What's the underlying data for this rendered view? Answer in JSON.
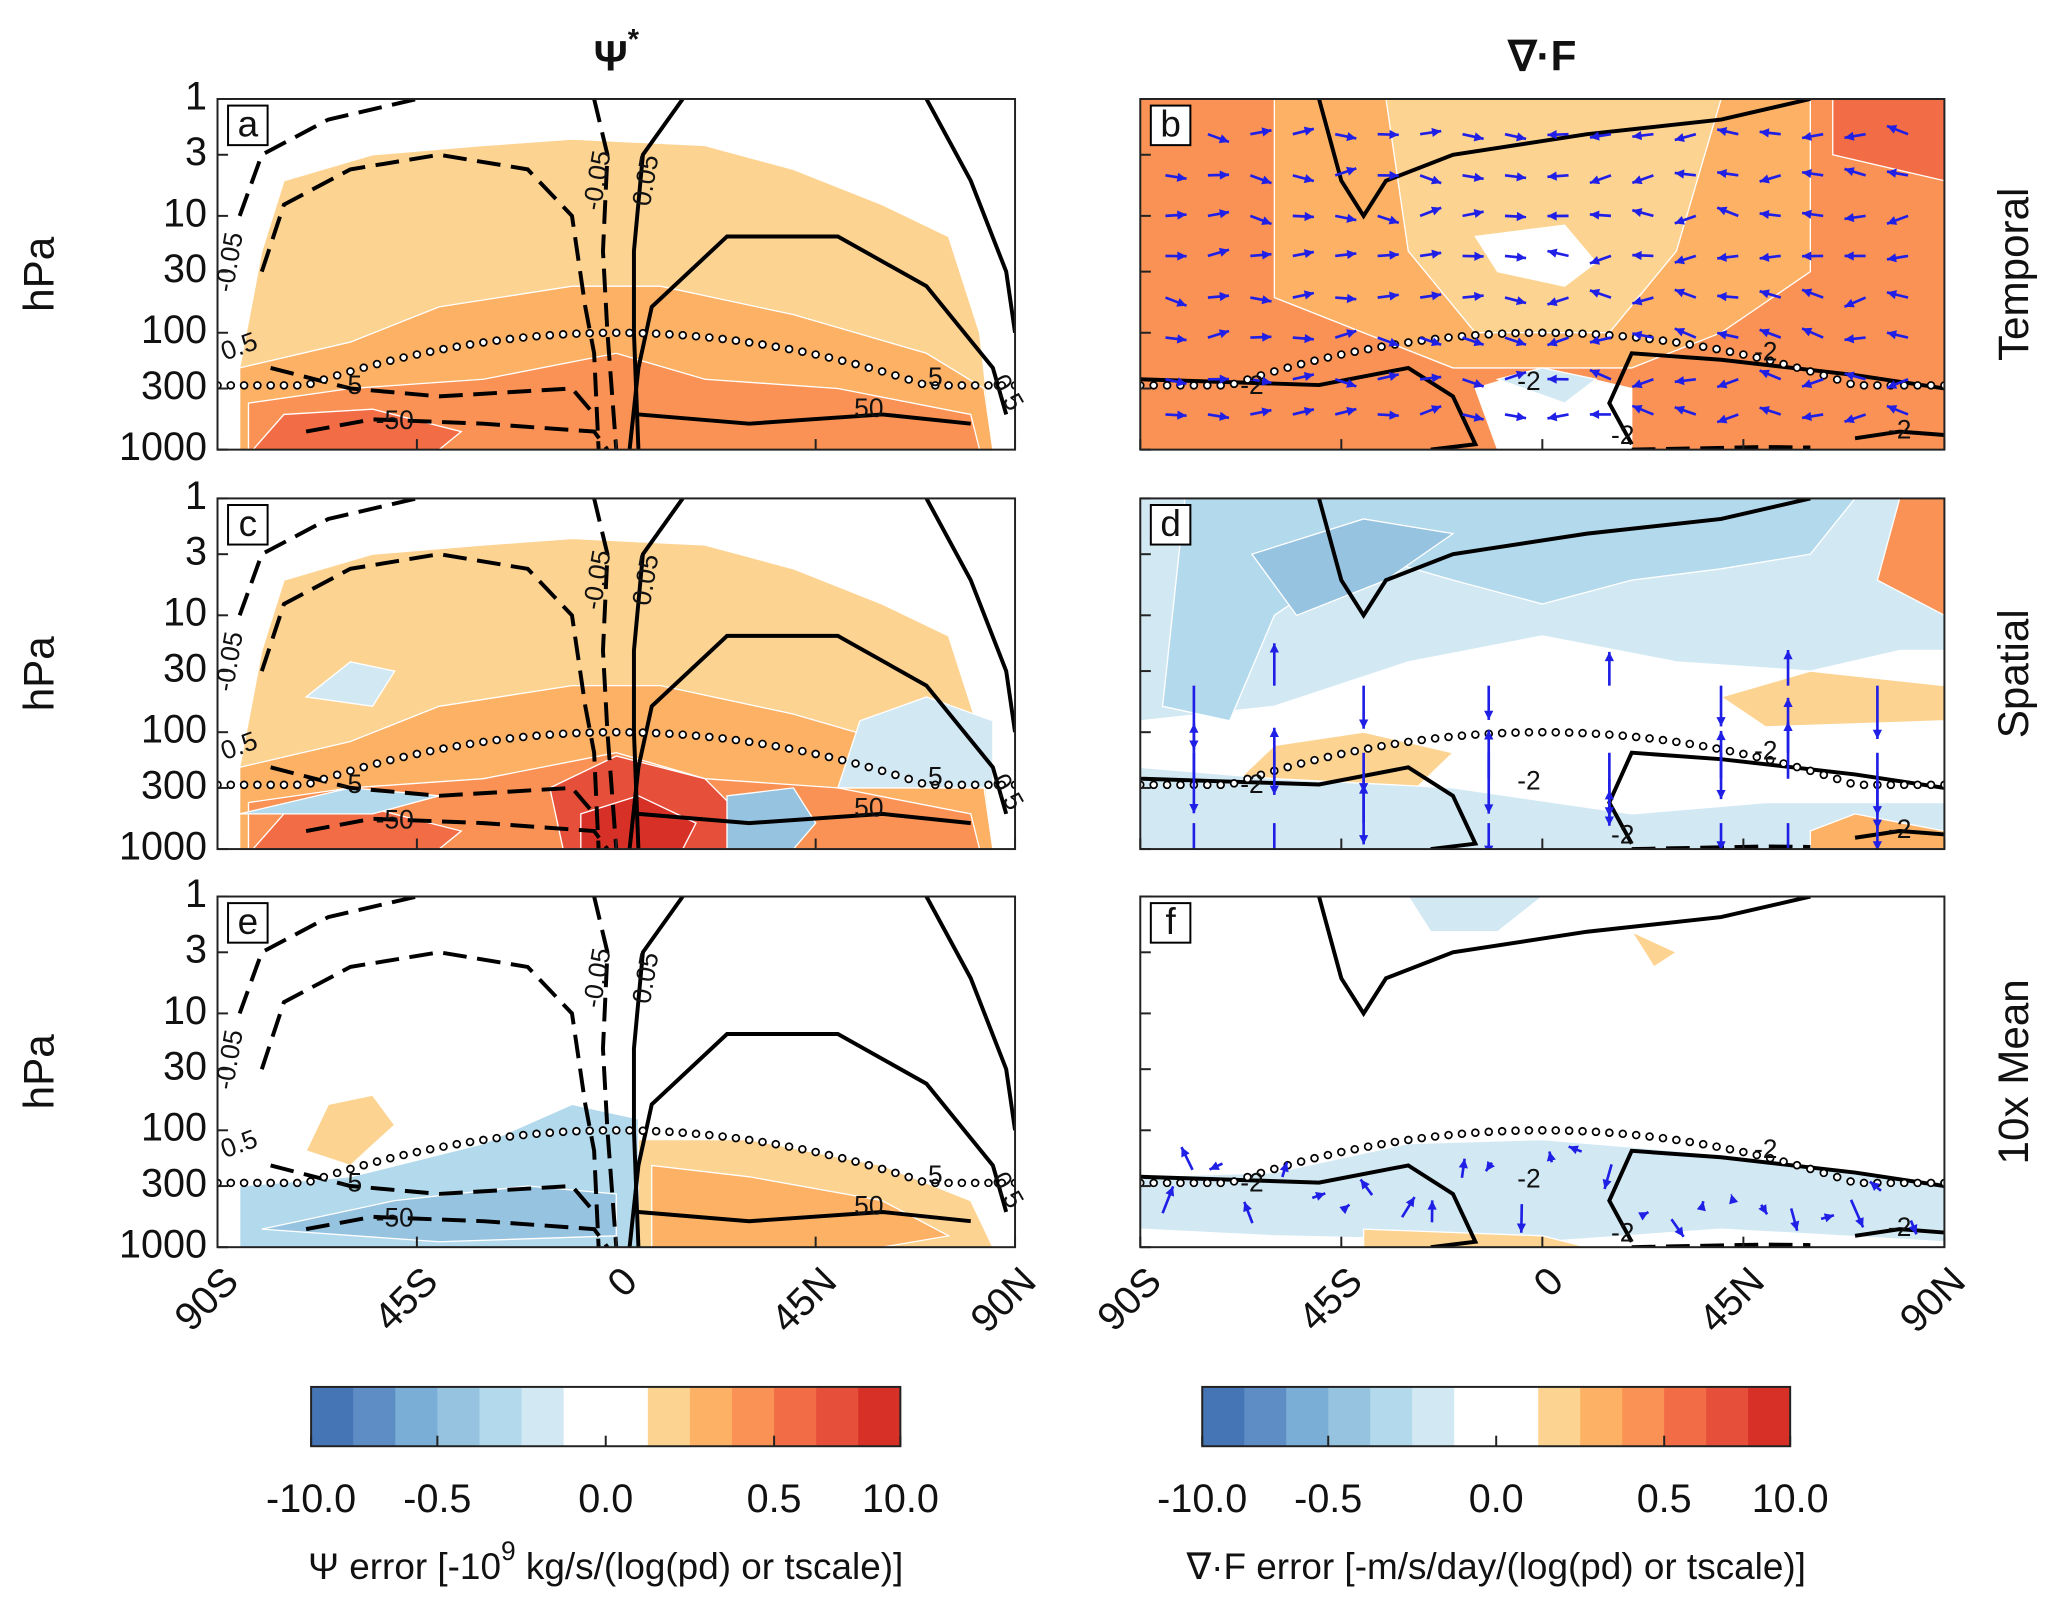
{
  "column_titles": [
    {
      "text": "Ψ",
      "sup": "*"
    },
    {
      "text": "∇·F"
    }
  ],
  "row_labels": [
    "Temporal",
    "Spatial",
    "10x Mean"
  ],
  "panels": [
    {
      "letter": "a",
      "contour_labels": [
        "-0.05",
        "-0.05",
        "0.05",
        "0.5",
        "0.5",
        "-5",
        "5",
        "-50",
        "50"
      ]
    },
    {
      "letter": "b",
      "contour_labels": [
        "-2",
        "-2",
        "-2",
        "-2",
        "-2"
      ]
    },
    {
      "letter": "c",
      "contour_labels": [
        "-0.05",
        "-0.05",
        "0.05",
        "0.5",
        "0.5",
        "-5",
        "5",
        "-50",
        "50"
      ]
    },
    {
      "letter": "d",
      "contour_labels": [
        "-2",
        "-2",
        "-2",
        "-2",
        "-2"
      ]
    },
    {
      "letter": "e",
      "contour_labels": [
        "-0.05",
        "-0.05",
        "0.05",
        "0.5",
        "0.5",
        "-5",
        "5",
        "-50",
        "50"
      ]
    },
    {
      "letter": "f",
      "contour_labels": [
        "-2",
        "-2",
        "-2",
        "-2",
        "-2"
      ]
    }
  ],
  "axes": {
    "ylabel": "hPa",
    "yscale": "log",
    "ylim": [
      1,
      1000
    ],
    "yticks": [
      1,
      3,
      10,
      30,
      100,
      300,
      1000
    ],
    "xlim": [
      -90,
      90
    ],
    "xticks": [
      {
        "value": -90,
        "label": "90S"
      },
      {
        "value": -45,
        "label": "45S"
      },
      {
        "value": 0,
        "label": "0"
      },
      {
        "value": 45,
        "label": "45N"
      },
      {
        "value": 90,
        "label": "90N"
      }
    ]
  },
  "colorbars": [
    {
      "label_parts": [
        "Ψ error [-10",
        "9",
        " kg/s/(log(pd) or tscale)]"
      ],
      "colors": [
        "#4575b4",
        "#5e8cc4",
        "#7aaed6",
        "#95c3e0",
        "#b3d9ec",
        "#d2e9f4",
        "#ffffff",
        "#ffffff",
        "#fdd391",
        "#fcb165",
        "#f99254",
        "#f26c45",
        "#e6503a",
        "#d73027"
      ],
      "boundaries": [
        -10,
        -5,
        -1,
        -0.5,
        -0.2,
        -0.1,
        -0.05,
        0,
        0.05,
        0.1,
        0.2,
        0.5,
        1,
        5,
        10
      ],
      "ticks": [
        {
          "value": -10,
          "label": "-10.0"
        },
        {
          "value": -0.5,
          "label": "-0.5"
        },
        {
          "value": 0,
          "label": "0.0"
        },
        {
          "value": 0.5,
          "label": "0.5"
        },
        {
          "value": 10,
          "label": "10.0"
        }
      ]
    },
    {
      "label_parts": [
        "∇·F error [-m/s/day/(log(pd) or tscale)]"
      ],
      "colors": [
        "#4575b4",
        "#5e8cc4",
        "#7aaed6",
        "#95c3e0",
        "#b3d9ec",
        "#d2e9f4",
        "#ffffff",
        "#ffffff",
        "#fdd391",
        "#fcb165",
        "#f99254",
        "#f26c45",
        "#e6503a",
        "#d73027"
      ],
      "boundaries": [
        -10,
        -5,
        -1,
        -0.5,
        -0.2,
        -0.1,
        -0.05,
        0,
        0.05,
        0.1,
        0.2,
        0.5,
        1,
        5,
        10
      ],
      "ticks": [
        {
          "value": -10,
          "label": "-10.0"
        },
        {
          "value": -0.5,
          "label": "-0.5"
        },
        {
          "value": 0,
          "label": "0.0"
        },
        {
          "value": 0.5,
          "label": "0.5"
        },
        {
          "value": 10,
          "label": "10.0"
        }
      ]
    }
  ]
}
